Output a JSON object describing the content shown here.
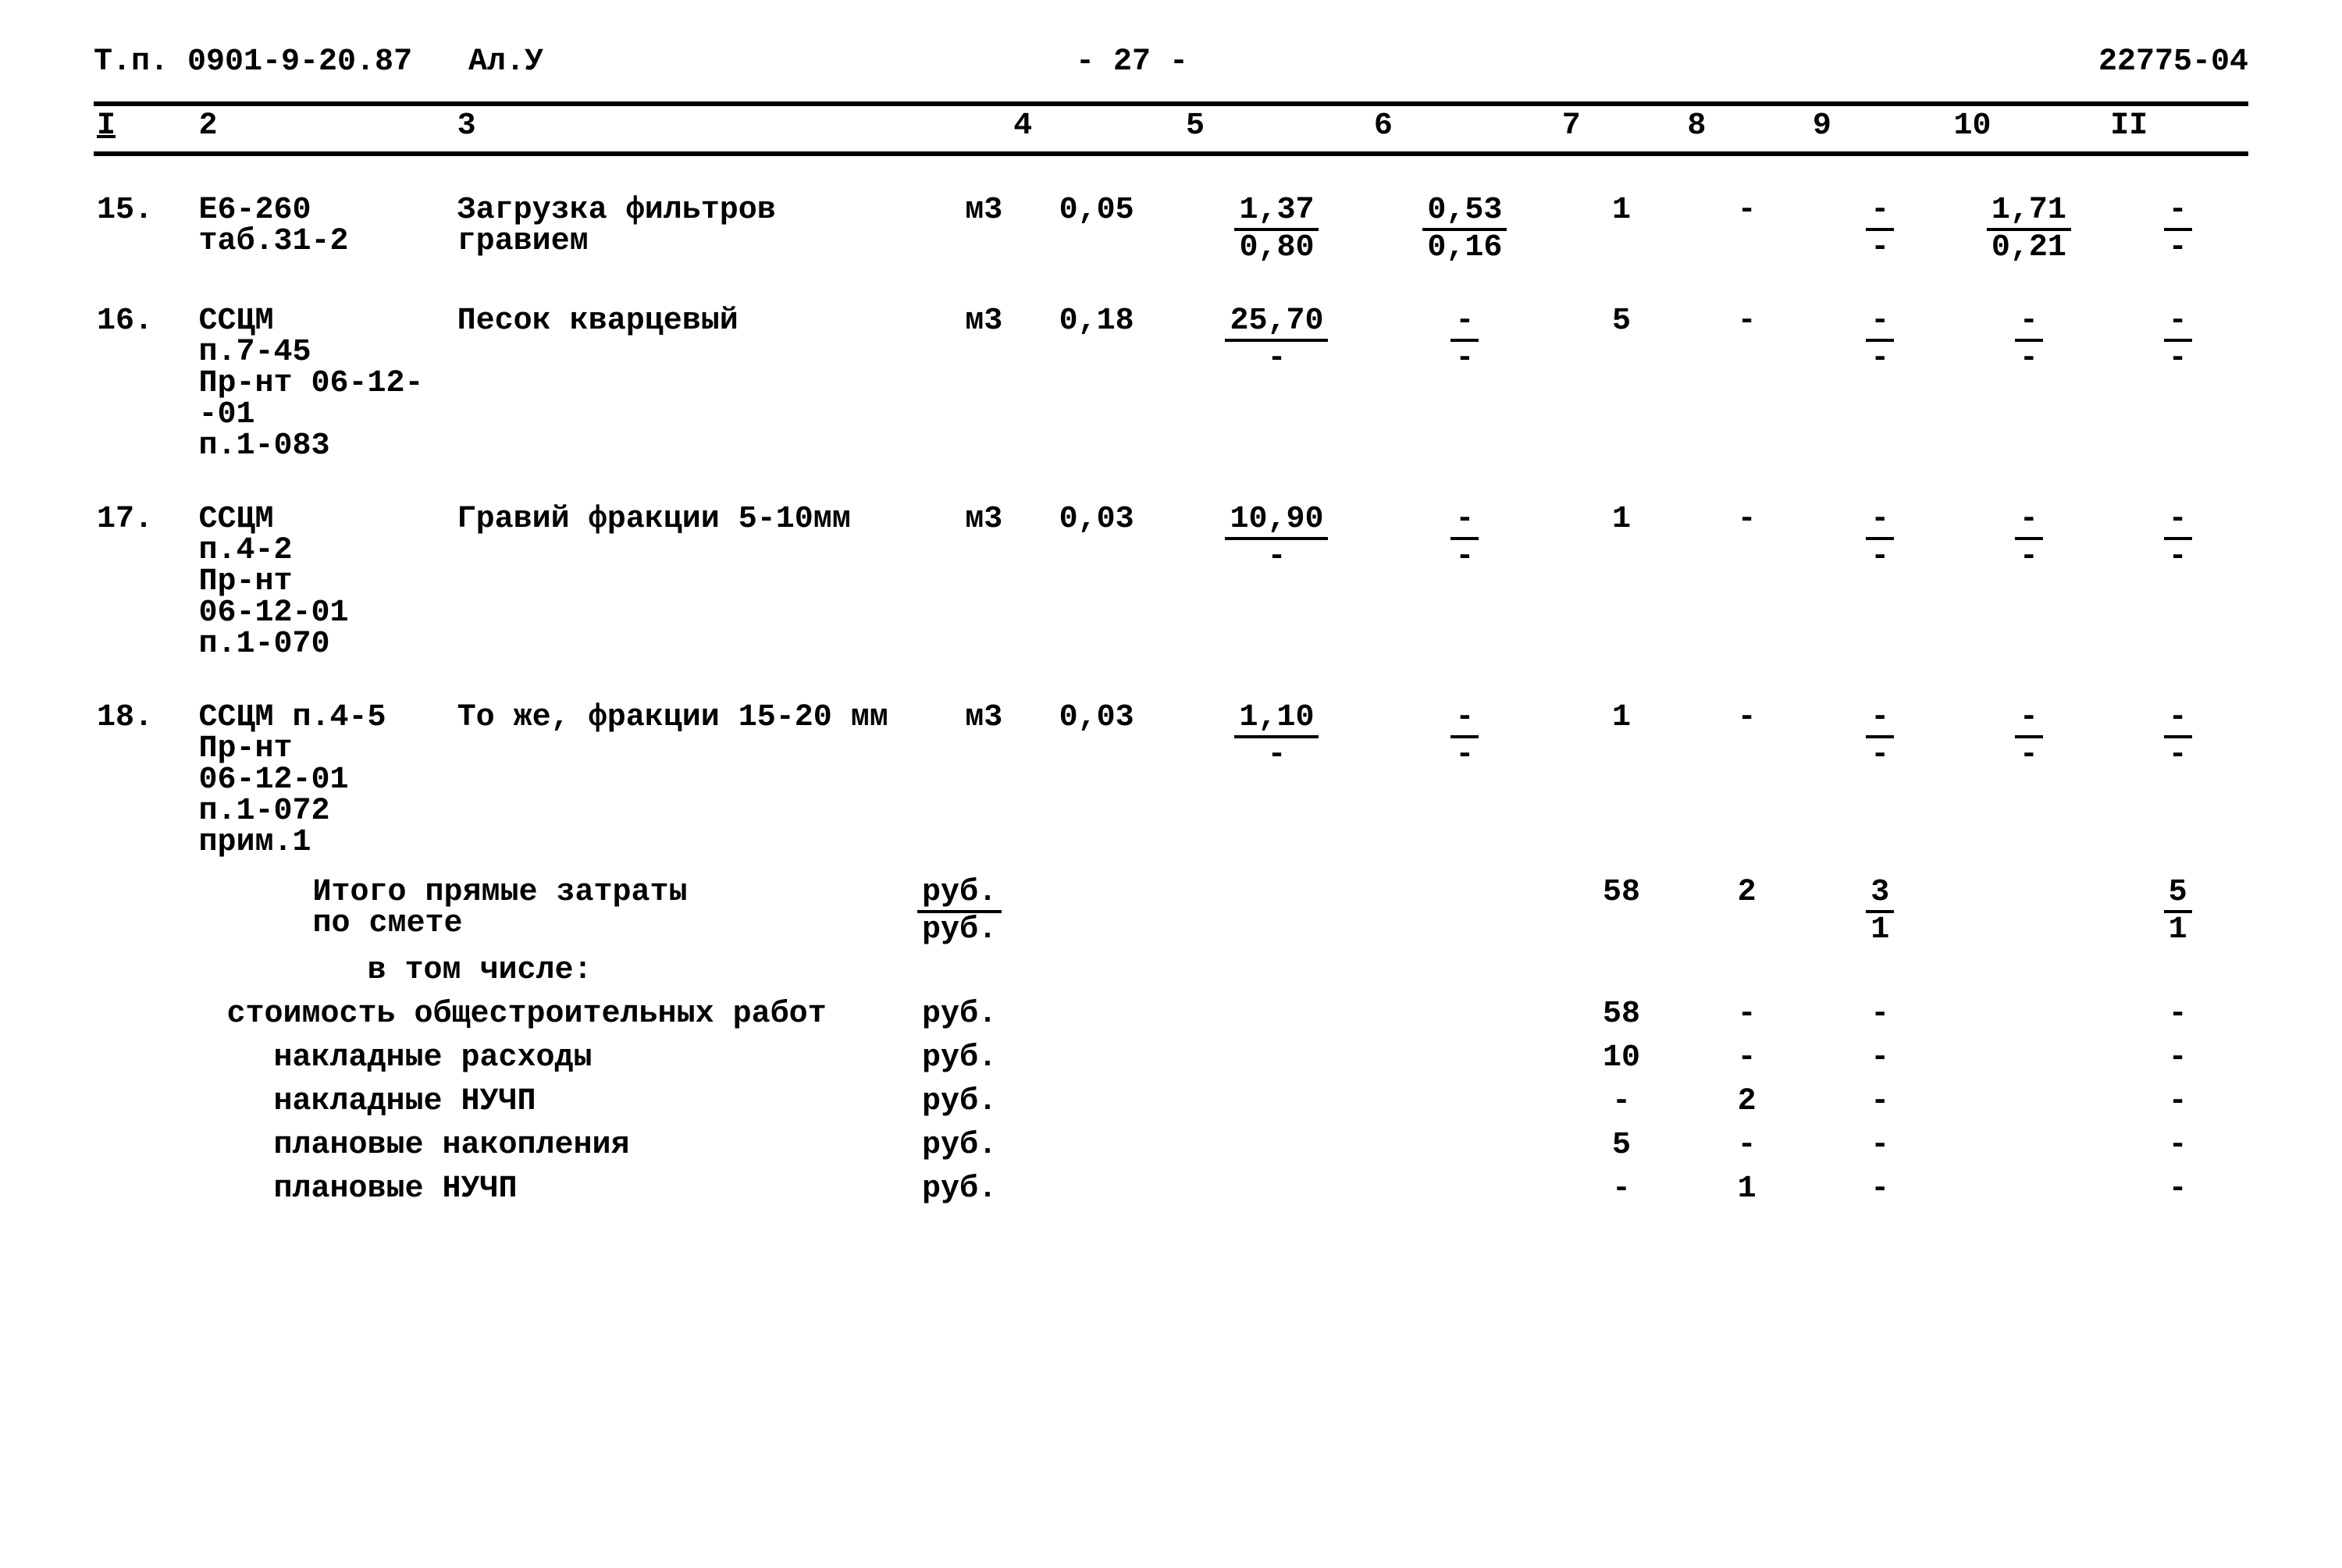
{
  "header": {
    "tp": "Т.п.  0901-9-20.87",
    "al": "Ал.У",
    "page": "- 27 -",
    "code": "22775-04"
  },
  "cols": [
    "I",
    "2",
    "3",
    "4",
    "5",
    "6",
    "7",
    "8",
    "9",
    "10",
    "II"
  ],
  "rows": [
    {
      "n": "15.",
      "ref": "Е6-260\nтаб.31-2",
      "desc": "Загрузка фильтров гравием",
      "unit": "м3",
      "c4": "0,05",
      "c5t": "1,37",
      "c5b": "0,80",
      "c6t": "0,53",
      "c6b": "0,16",
      "c7": "1",
      "c8": "-",
      "c9t": "-",
      "c9b": "-",
      "c10t": "1,71",
      "c10b": "0,21",
      "c11t": "-",
      "c11b": "-"
    },
    {
      "n": "16.",
      "ref": "ССЦМ\nп.7-45\nПр-нт 06-12-\n-01\nп.1-083",
      "desc": "Песок кварцевый",
      "unit": "м3",
      "c4": "0,18",
      "c5t": "25,70",
      "c5b": "-",
      "c6t": "-",
      "c6b": "-",
      "c7": "5",
      "c8": "-",
      "c9t": "-",
      "c9b": "-",
      "c10t": "-",
      "c10b": "-",
      "c11t": "-",
      "c11b": "-"
    },
    {
      "n": "17.",
      "ref": "ССЦМ\nп.4-2\nПр-нт\n06-12-01\nп.1-070",
      "desc": "Гравий фракции 5-10мм",
      "unit": "м3",
      "c4": "0,03",
      "c5t": "10,90",
      "c5b": "-",
      "c6t": "-",
      "c6b": "-",
      "c7": "1",
      "c8": "-",
      "c9t": "-",
      "c9b": "-",
      "c10t": "-",
      "c10b": "-",
      "c11t": "-",
      "c11b": "-"
    },
    {
      "n": "18.",
      "ref": "ССЦМ п.4-5\nПр-нт\n06-12-01\nп.1-072\nприм.1",
      "desc": "То же, фракции 15-20 мм",
      "unit": "м3",
      "c4": "0,03",
      "c5t": "1,10",
      "c5b": "-",
      "c6t": "-",
      "c6b": "-",
      "c7": "1",
      "c8": "-",
      "c9t": "-",
      "c9b": "-",
      "c10t": "-",
      "c10b": "-",
      "c11t": "-",
      "c11b": "-"
    }
  ],
  "summary": {
    "head": {
      "label": "Итого прямые затраты\nпо смете",
      "unit_t": "руб.",
      "unit_b": "руб.",
      "c7": "58",
      "c8": "2",
      "c9t": "3",
      "c9b": "1",
      "c11t": "5",
      "c11b": "1"
    },
    "incl": "в том числе:",
    "r1": {
      "label": "стоимость общестроительных работ",
      "unit": "руб.",
      "c7": "58",
      "c8": "-",
      "c9": "-",
      "c11": "-"
    },
    "r2": {
      "label": "накладные расходы",
      "unit": "руб.",
      "c7": "10",
      "c8": "-",
      "c9": "-",
      "c11": "-"
    },
    "r3": {
      "label": "накладные НУЧП",
      "unit": "руб.",
      "c7": "-",
      "c8": "2",
      "c9": "-",
      "c11": "-"
    },
    "r4": {
      "label": "плановые накопления",
      "unit": "руб.",
      "c7": "5",
      "c8": "-",
      "c9": "-",
      "c11": "-"
    },
    "r5": {
      "label": "плановые НУЧП",
      "unit": "руб.",
      "c7": "-",
      "c8": "1",
      "c9": "-",
      "c11": "-"
    }
  }
}
